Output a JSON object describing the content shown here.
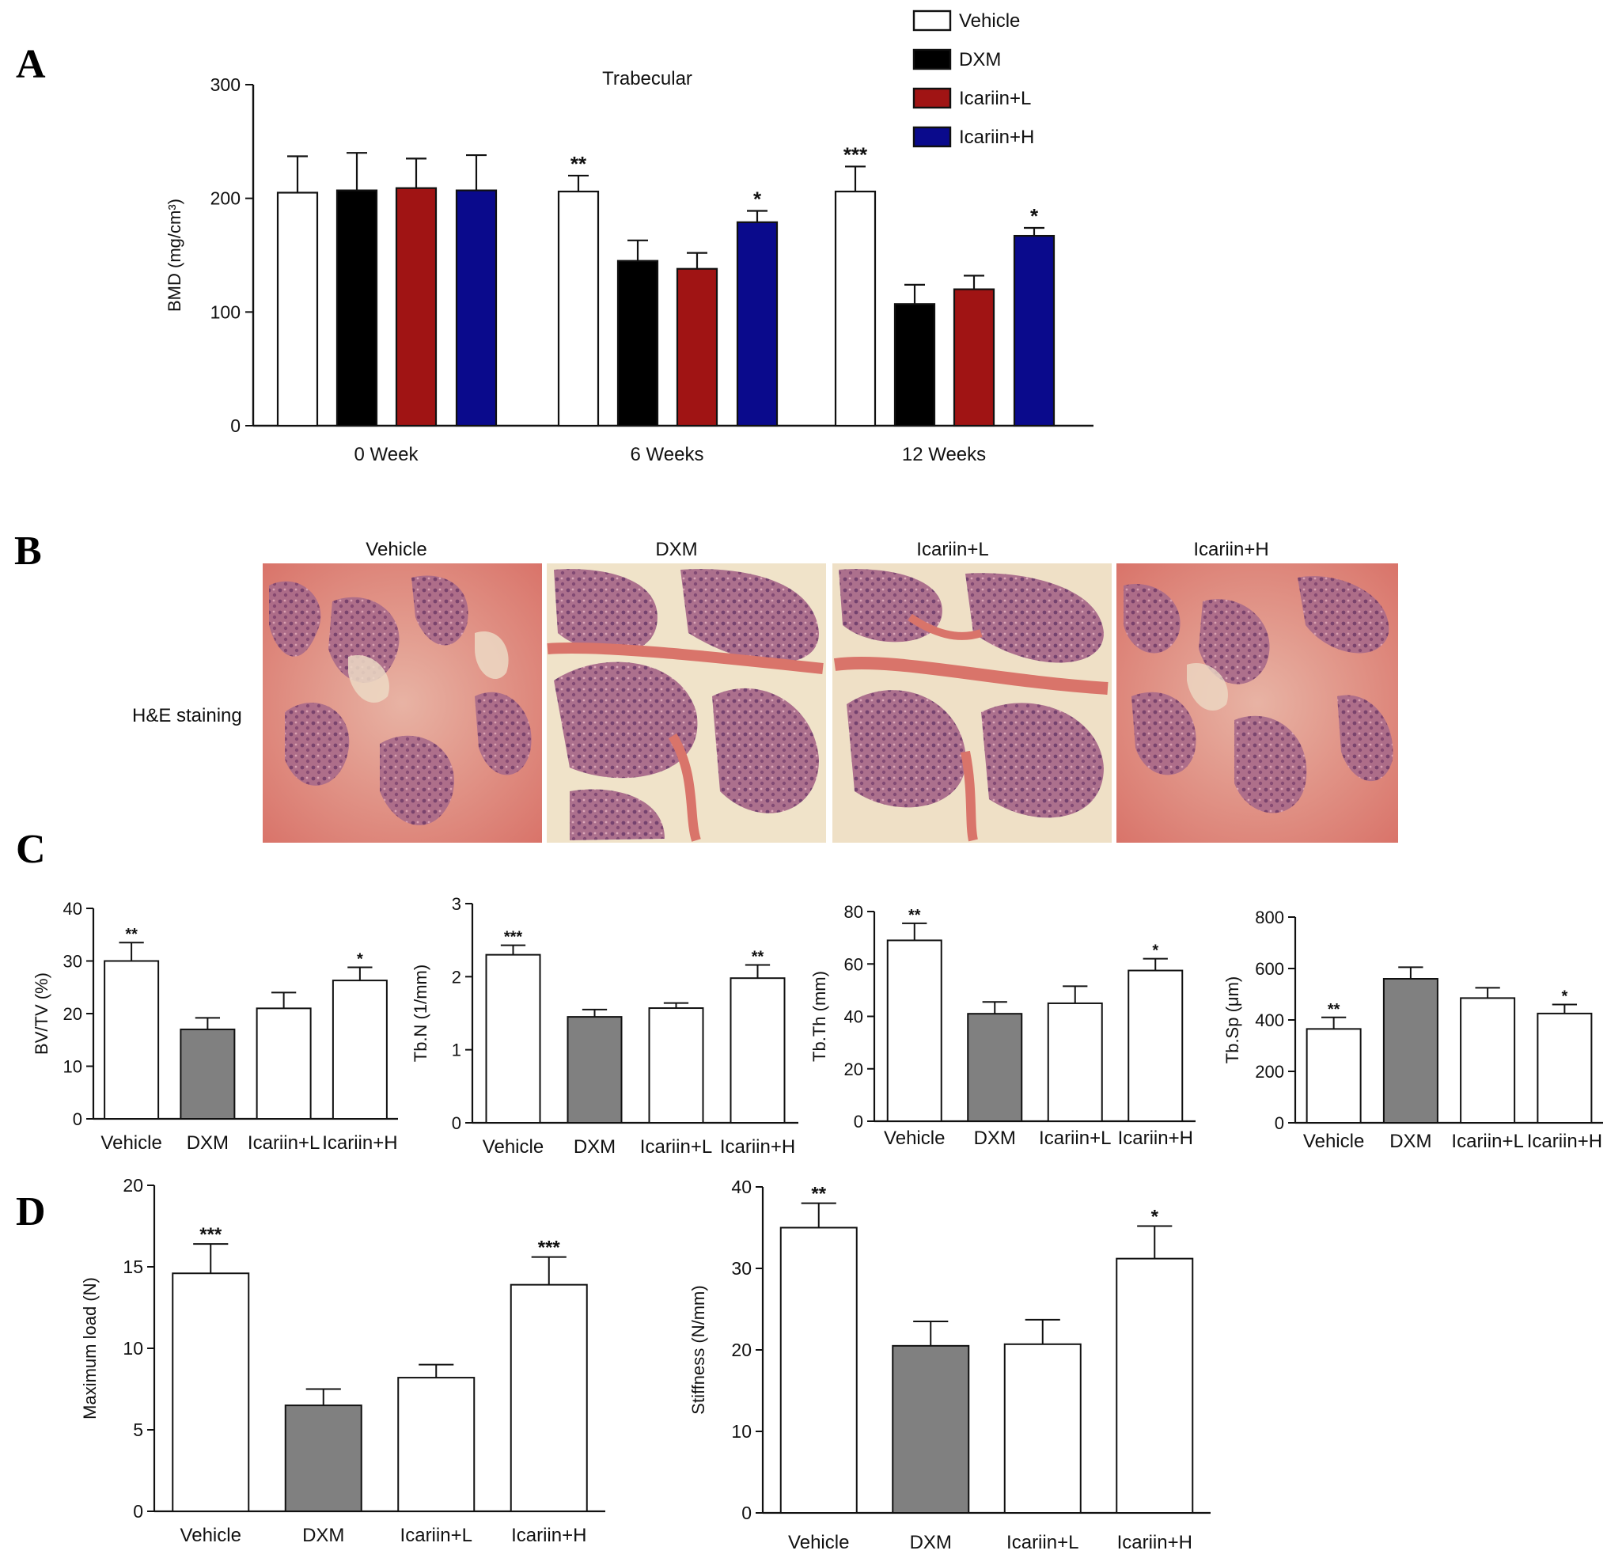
{
  "panels": {
    "a": "A",
    "b": "B",
    "c": "C",
    "d": "D"
  },
  "legend": [
    {
      "label": "Vehicle",
      "color": "#ffffff"
    },
    {
      "label": "DXM",
      "color": "#000000"
    },
    {
      "label": "Icariin+L",
      "color": "#a01414"
    },
    {
      "label": "Icariin+H",
      "color": "#0a0a8c"
    }
  ],
  "histology": {
    "row_label": "H&E staining",
    "columns": [
      "Vehicle",
      "DXM",
      "Icariin+L",
      "Icariin+H"
    ]
  },
  "chart_data": [
    {
      "id": "bmd",
      "type": "bar",
      "title": "Trabecular",
      "ylabel": "BMD (mg/cm³)",
      "xlabel": "",
      "ylim": [
        0,
        300
      ],
      "yticks": [
        0,
        100,
        200,
        300
      ],
      "categories": [
        "0 Week",
        "6 Weeks",
        "12 Weeks"
      ],
      "series": [
        {
          "name": "Vehicle",
          "color": "#ffffff",
          "values": [
            205,
            206,
            206
          ],
          "errors": [
            32,
            14,
            22
          ],
          "sig": [
            "",
            "**",
            "***"
          ]
        },
        {
          "name": "DXM",
          "color": "#000000",
          "values": [
            207,
            145,
            107
          ],
          "errors": [
            33,
            18,
            17
          ],
          "sig": [
            "",
            "",
            ""
          ]
        },
        {
          "name": "Icariin+L",
          "color": "#a01414",
          "values": [
            209,
            138,
            120
          ],
          "errors": [
            26,
            14,
            12
          ],
          "sig": [
            "",
            "",
            ""
          ]
        },
        {
          "name": "Icariin+H",
          "color": "#0a0a8c",
          "values": [
            207,
            179,
            167
          ],
          "errors": [
            31,
            10,
            7
          ],
          "sig": [
            "",
            "*",
            "*"
          ]
        }
      ]
    },
    {
      "id": "bvtv",
      "type": "bar",
      "ylabel": "BV/TV (%)",
      "ylim": [
        0,
        40
      ],
      "yticks": [
        0,
        10,
        20,
        30,
        40
      ],
      "categories": [
        "Vehicle",
        "DXM",
        "Icariin+L",
        "Icariin+H"
      ],
      "colors": [
        "#ffffff",
        "#808080",
        "#ffffff",
        "#ffffff"
      ],
      "values": [
        30,
        17,
        21,
        26.3
      ],
      "errors": [
        3.5,
        2.2,
        3.0,
        2.5
      ],
      "sig": [
        "**",
        "",
        "",
        "*"
      ]
    },
    {
      "id": "tbn",
      "type": "bar",
      "ylabel": "Tb.N (1/mm)",
      "ylim": [
        0,
        3
      ],
      "yticks": [
        0,
        1,
        2,
        3
      ],
      "categories": [
        "Vehicle",
        "DXM",
        "Icariin+L",
        "Icariin+H"
      ],
      "colors": [
        "#ffffff",
        "#808080",
        "#ffffff",
        "#ffffff"
      ],
      "values": [
        2.3,
        1.45,
        1.57,
        1.98
      ],
      "errors": [
        0.13,
        0.1,
        0.07,
        0.18
      ],
      "sig": [
        "***",
        "",
        "",
        "**"
      ]
    },
    {
      "id": "tbth",
      "type": "bar",
      "ylabel": "Tb.Th (mm)",
      "ylim": [
        0,
        80
      ],
      "yticks": [
        0,
        20,
        40,
        60,
        80
      ],
      "categories": [
        "Vehicle",
        "DXM",
        "Icariin+L",
        "Icariin+H"
      ],
      "colors": [
        "#ffffff",
        "#808080",
        "#ffffff",
        "#ffffff"
      ],
      "values": [
        69,
        41,
        45,
        57.5
      ],
      "errors": [
        6.5,
        4.5,
        6.5,
        4.5
      ],
      "sig": [
        "**",
        "",
        "",
        "*"
      ]
    },
    {
      "id": "tbsp",
      "type": "bar",
      "ylabel": "Tb.Sp (μm)",
      "ylim": [
        0,
        800
      ],
      "yticks": [
        0,
        200,
        400,
        600,
        800
      ],
      "categories": [
        "Vehicle",
        "DXM",
        "Icariin+L",
        "Icariin+H"
      ],
      "colors": [
        "#ffffff",
        "#808080",
        "#ffffff",
        "#ffffff"
      ],
      "values": [
        365,
        560,
        485,
        425
      ],
      "errors": [
        45,
        45,
        40,
        35
      ],
      "sig": [
        "**",
        "",
        "",
        "*"
      ]
    },
    {
      "id": "maxload",
      "type": "bar",
      "ylabel": "Maximum load (N)",
      "ylim": [
        0,
        20
      ],
      "yticks": [
        0,
        5,
        10,
        15,
        20
      ],
      "categories": [
        "Vehicle",
        "DXM",
        "Icariin+L",
        "Icariin+H"
      ],
      "colors": [
        "#ffffff",
        "#808080",
        "#ffffff",
        "#ffffff"
      ],
      "values": [
        14.6,
        6.5,
        8.2,
        13.9
      ],
      "errors": [
        1.8,
        1.0,
        0.8,
        1.7
      ],
      "sig": [
        "***",
        "",
        "",
        "***"
      ]
    },
    {
      "id": "stiffness",
      "type": "bar",
      "ylabel": "Stiffness (N/mm)",
      "ylim": [
        0,
        40
      ],
      "yticks": [
        0,
        10,
        20,
        30,
        40
      ],
      "categories": [
        "Vehicle",
        "DXM",
        "Icariin+L",
        "Icariin+H"
      ],
      "colors": [
        "#ffffff",
        "#808080",
        "#ffffff",
        "#ffffff"
      ],
      "values": [
        35,
        20.5,
        20.7,
        31.2
      ],
      "errors": [
        3,
        3,
        3,
        4
      ],
      "sig": [
        "**",
        "",
        "",
        "*"
      ]
    }
  ]
}
